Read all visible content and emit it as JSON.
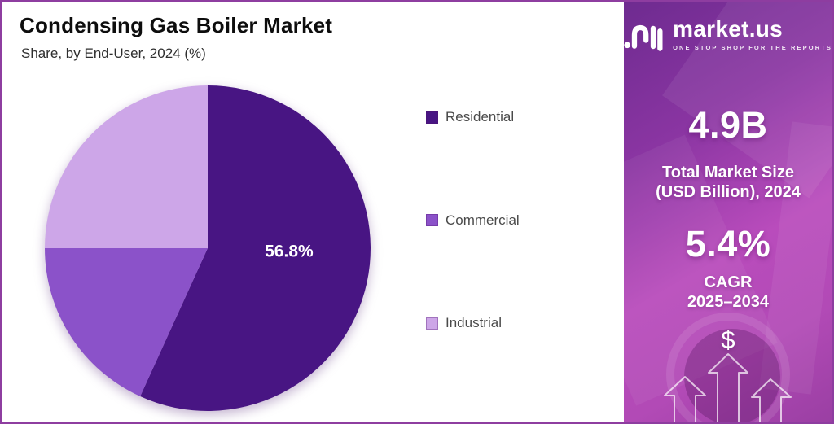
{
  "frame": {
    "border_color": "#8e3da0",
    "background": "#ffffff"
  },
  "header": {
    "title": "Condensing Gas Boiler Market",
    "subtitle": "Share, by End-User, 2024 (%)"
  },
  "chart_data": {
    "type": "pie",
    "title": "Condensing Gas Boiler Market",
    "subtitle": "Share, by End-User, 2024 (%)",
    "unit": "%",
    "categories": [
      "Residential",
      "Commercial",
      "Industrial"
    ],
    "values": [
      56.8,
      18.2,
      25.0
    ],
    "colors": [
      "#481583",
      "#8b52c9",
      "#cda6e8"
    ],
    "data_labels": [
      "56.8%",
      null,
      null
    ],
    "start_angle_deg": -90,
    "direction": "clockwise",
    "legend_position": "right",
    "label_color": "#ffffff"
  },
  "sidebar": {
    "logo": {
      "brand": "market.us",
      "tagline": "ONE STOP SHOP FOR THE REPORTS"
    },
    "stats": [
      {
        "value": "4.9B",
        "line1": "Total Market Size",
        "line2": "(USD Billion), 2024"
      },
      {
        "value": "5.4%",
        "line1": "CAGR",
        "line2": "2025–2034"
      }
    ],
    "dollar": "$",
    "accent_top": "#6e2b90",
    "accent_mid": "#b94cbc",
    "accent_bottom": "#9a3fa3"
  }
}
